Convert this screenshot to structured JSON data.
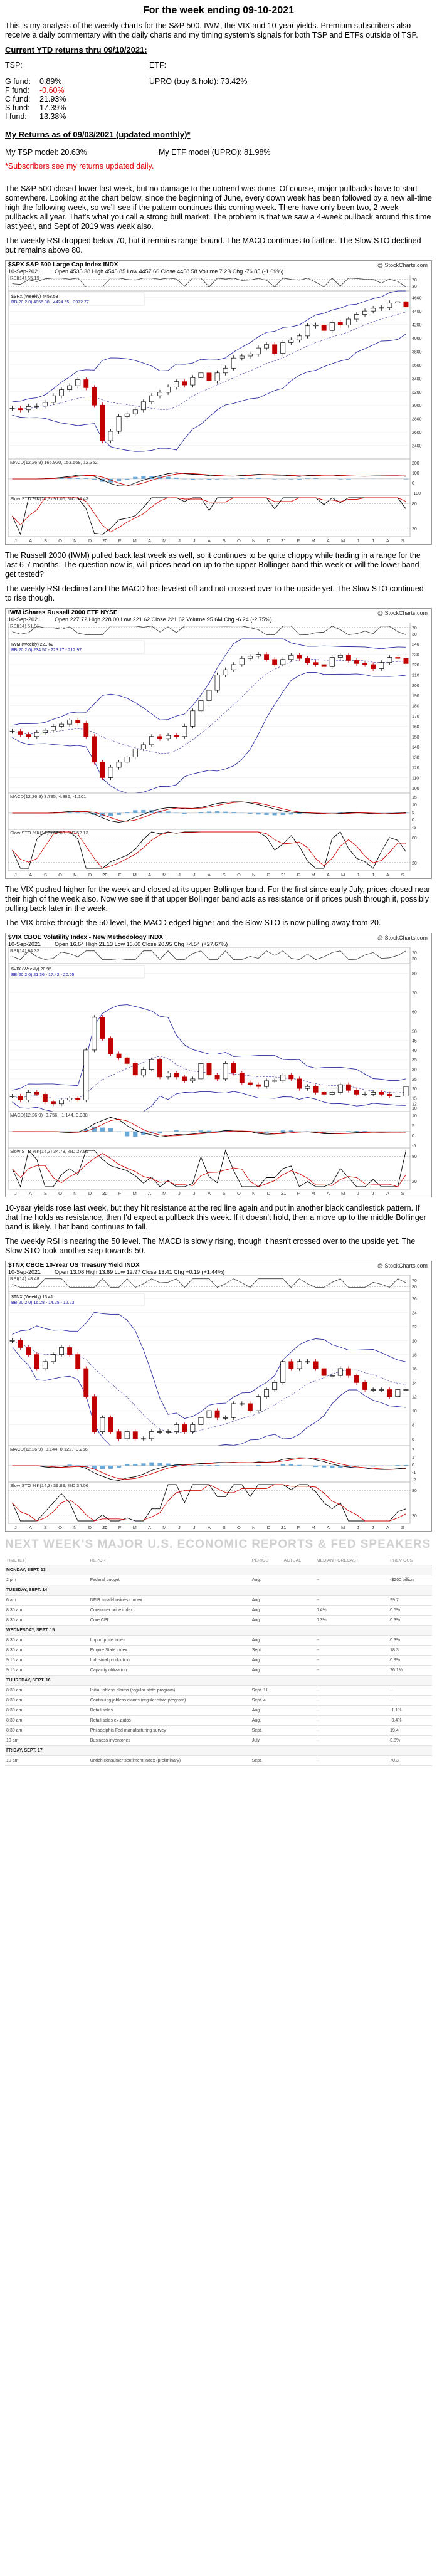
{
  "title": "For the week ending 09-10-2021",
  "intro": "This is my analysis of the weekly charts for the S&P 500, IWM, the VIX and 10-year yields. Premium subscribers also receive a daily commentary with the daily charts and my timing system's signals for both TSP and ETFs outside of TSP.",
  "ytd_heading": "Current YTD returns thru 09/10/2021:",
  "tsp_label": "TSP:",
  "etf_label": "ETF:",
  "tsp_returns": [
    {
      "fund": "G fund:",
      "value": "0.89%",
      "negative": false
    },
    {
      "fund": "F fund:",
      "value": "-0.60%",
      "negative": true
    },
    {
      "fund": "C fund:",
      "value": "21.93%",
      "negative": false
    },
    {
      "fund": "S fund:",
      "value": "17.39%",
      "negative": false
    },
    {
      "fund": "I fund:",
      "value": "13.38%",
      "negative": false
    }
  ],
  "etf_return": "UPRO (buy & hold): 73.42%",
  "my_returns_heading": "My Returns as of 09/03/2021 (updated monthly)*",
  "my_tsp_model": "My TSP model: 20.63%",
  "my_etf_model": "My ETF model (UPRO): 81.98%",
  "subscribers_note": "*Subscribers see my returns updated daily.",
  "para_spx": "The S&P 500 closed lower last week, but no damage to the uptrend was done. Of course, major pullbacks have to start somewhere. Looking at the chart below, since the beginning of June, every down week has been followed by a new all-time high the following week, so we'll see if the pattern continues this coming week. There have only been two, 2-week pullbacks all year. That's what you call a strong bull market. The problem is that we saw a 4-week pullback around this time last year, and Sept of 2019 was weak also.",
  "para_spx2": "The weekly RSI dropped below 70, but it remains range-bound. The MACD continues to flatline. The Slow STO declined but remains above 80.",
  "para_iwm": "The Russell 2000 (IWM) pulled back last week as well, so it continues to be quite choppy while trading in a range for the last 6-7 months. The question now is, will prices head on up to the upper Bollinger band this week or will the lower band get tested?",
  "para_iwm2": "The weekly RSI declined and the MACD has leveled off and not crossed over to the upside yet. The Slow STO continued to rise though.",
  "para_vix": "The VIX pushed higher for the week and closed at its upper Bollinger band. For the first since early July, prices closed near their high of the week also. Now we see if that upper Bollinger band acts as resistance or if prices push through it, possibly pulling back later in the week.",
  "para_vix2": "The VIX broke through the 50 level, the MACD edged higher and the Slow STO is now pulling away from 20.",
  "para_tnx": "10-year yields rose last week, but they hit resistance at the red line again and put in another black candlestick pattern. If that line holds as resistance, then I'd expect a pullback this week. If it doesn't hold, then a move up to the middle Bollinger band is likely. That band continues to fall.",
  "para_tnx2": "The weekly RSI is nearing the 50 level. The MACD is slowly rising, though it hasn't crossed over to the upside yet. The Slow STO took another step towards 50.",
  "charts": [
    {
      "symbol": "$SPX S&P 500 Large Cap Index INDX",
      "date": "10-Sep-2021",
      "ohlc": "Open 4535.38  High 4545.85  Low 4457.66  Close 4458.58  Volume 7.2B  Chg -76.85 (-1.69%)",
      "brand": "@ StockCharts.com",
      "rsi_label": "RSI(14) 65.19",
      "price_legend": "$SPX (Weekly) 4458.58",
      "bb_legend": "BB(20,2.0) 4856.38 - 4424.65 - 3972.77",
      "macd_label": "MACD(12,26,9) 165.920, 153.568, 12.352",
      "sto_label": "Slow STO %K(14,3) 91.06, %D 94.43",
      "yaxis": [
        "4600",
        "4400",
        "4200",
        "4000",
        "3800",
        "3600",
        "3400",
        "3200",
        "3000",
        "2800",
        "2600",
        "2400"
      ],
      "months": [
        "J",
        "A",
        "S",
        "O",
        "N",
        "D",
        "20",
        "F",
        "M",
        "A",
        "M",
        "J",
        "J",
        "A",
        "S",
        "O",
        "N",
        "D",
        "21",
        "F",
        "M",
        "A",
        "M",
        "J",
        "J",
        "A",
        "S"
      ],
      "rsi_levels": [
        "70",
        "30"
      ],
      "macd_levels": [
        "200",
        "100",
        "0",
        "-100"
      ],
      "sto_levels": [
        "80",
        "20"
      ]
    },
    {
      "symbol": "IWM iShares Russell 2000 ETF NYSE",
      "date": "10-Sep-2021",
      "ohlc": "Open 227.72  High 228.00  Low 221.62  Close 221.62  Volume 95.6M  Chg -6.24 (-2.75%)",
      "brand": "@ StockCharts.com",
      "rsi_label": "RSI(14) 51.91",
      "price_legend": "IWM (Weekly) 221.62",
      "bb_legend": "BB(20,2.0) 234.57 - 223.77 - 212.97",
      "macd_label": "MACD(12,26,9) 3.785, 4.886, -1.101",
      "sto_label": "Slow STO %K(14,3) 66.83, %D 52.13",
      "yaxis": [
        "240",
        "230",
        "220",
        "210",
        "200",
        "190",
        "180",
        "170",
        "160",
        "150",
        "140",
        "130",
        "120",
        "110",
        "100"
      ],
      "months": [
        "J",
        "A",
        "S",
        "O",
        "N",
        "D",
        "20",
        "F",
        "M",
        "A",
        "M",
        "J",
        "J",
        "A",
        "S",
        "O",
        "N",
        "D",
        "21",
        "F",
        "M",
        "A",
        "M",
        "J",
        "J",
        "A",
        "S"
      ],
      "rsi_levels": [
        "70",
        "30"
      ],
      "macd_levels": [
        "15",
        "10",
        "5",
        "0",
        "-5"
      ],
      "sto_levels": [
        "80",
        "20"
      ]
    },
    {
      "symbol": "$VIX CBOE Volatility Index - New Methodology INDX",
      "date": "10-Sep-2021",
      "ohlc": "Open 16.64  High 21.13  Low 16.60  Close 20.95  Chg +4.54 (+27.67%)",
      "brand": "@ StockCharts.com",
      "rsi_label": "RSI(14) 54.32",
      "price_legend": "$VIX (Weekly) 20.95",
      "bb_legend": "BB(20,2.0) 21.36 - 17.42 - 20.05",
      "macd_label": "MACD(12,26,9) -0.756, -1.144, 0.388",
      "sto_label": "Slow STO %K(14,3) 34.73, %D 27.91",
      "yaxis": [
        "80",
        "70",
        "60",
        "50",
        "45",
        "40",
        "35",
        "30",
        "25",
        "20",
        "15",
        "12",
        "10"
      ],
      "months": [
        "J",
        "A",
        "S",
        "O",
        "N",
        "D",
        "20",
        "F",
        "M",
        "A",
        "M",
        "J",
        "J",
        "A",
        "S",
        "O",
        "N",
        "D",
        "21",
        "F",
        "M",
        "A",
        "M",
        "J",
        "J",
        "A",
        "S"
      ],
      "rsi_levels": [
        "70",
        "30"
      ],
      "macd_levels": [
        "10",
        "5",
        "0",
        "-5"
      ],
      "sto_levels": [
        "80",
        "20"
      ]
    },
    {
      "symbol": "$TNX CBOE 10-Year US Treasury Yield INDX",
      "date": "10-Sep-2021",
      "ohlc": "Open 13.08  High 13.69  Low 12.97  Close 13.41  Chg +0.19 (+1.44%)",
      "brand": "@ StockCharts.com",
      "rsi_label": "RSI(14) 48.48",
      "price_legend": "$TNX (Weekly) 13.41",
      "bb_legend": "BB(20,2.0) 16.28 - 14.25 - 12.23",
      "macd_label": "MACD(12,26,9) -0.144, 0.122, -0.266",
      "sto_label": "Slow STO %K(14,3) 39.89, %D 34.06",
      "yaxis": [
        "26",
        "24",
        "22",
        "20",
        "18",
        "16",
        "14",
        "12",
        "10",
        "8",
        "6"
      ],
      "months": [
        "J",
        "A",
        "S",
        "O",
        "N",
        "D",
        "20",
        "F",
        "M",
        "A",
        "M",
        "J",
        "J",
        "A",
        "S",
        "O",
        "N",
        "D",
        "21",
        "F",
        "M",
        "A",
        "M",
        "J",
        "J",
        "A",
        "S"
      ],
      "rsi_levels": [
        "70",
        "30"
      ],
      "macd_levels": [
        "2",
        "1",
        "0",
        "-1",
        "-2"
      ],
      "sto_levels": [
        "80",
        "20"
      ]
    }
  ],
  "chart_data": [
    {
      "type": "line",
      "title": "$SPX (Weekly)",
      "series": [
        {
          "name": "$SPX (Weekly)",
          "values": [
            2950,
            2930,
            2980,
            2990,
            3040,
            3140,
            3230,
            3290,
            3380,
            3260,
            3000,
            2470,
            2610,
            2830,
            2870,
            2930,
            3050,
            3140,
            3190,
            3270,
            3350,
            3300,
            3410,
            3480,
            3360,
            3480,
            3550,
            3700,
            3730,
            3760,
            3850,
            3900,
            3770,
            3930,
            3970,
            4030,
            4180,
            4190,
            4110,
            4230,
            4190,
            4280,
            4350,
            4400,
            4440,
            4450,
            4520,
            4540,
            4460
          ]
        }
      ],
      "ylim": [
        2200,
        4700
      ]
    },
    {
      "type": "line",
      "title": "IWM (Weekly)",
      "series": [
        {
          "name": "IWM (Weekly)",
          "values": [
            155,
            152,
            150,
            154,
            156,
            160,
            162,
            166,
            163,
            150,
            125,
            110,
            120,
            125,
            130,
            138,
            142,
            150,
            148,
            151,
            150,
            160,
            175,
            185,
            195,
            210,
            215,
            220,
            226,
            228,
            230,
            225,
            220,
            225,
            229,
            226,
            222,
            220,
            218,
            227,
            229,
            224,
            221,
            220,
            216,
            222,
            227,
            226,
            221
          ]
        }
      ],
      "ylim": [
        95,
        245
      ]
    },
    {
      "type": "line",
      "title": "$VIX (Weekly)",
      "series": [
        {
          "name": "$VIX (Weekly)",
          "values": [
            16,
            14,
            18,
            17,
            13,
            12,
            14,
            15,
            14,
            40,
            57,
            46,
            38,
            36,
            33,
            27,
            30,
            35,
            26,
            28,
            26,
            24,
            25,
            33,
            27,
            25,
            33,
            28,
            23,
            22,
            21,
            24,
            24,
            27,
            25,
            20,
            21,
            18,
            17,
            18,
            22,
            19,
            17,
            17,
            18,
            17,
            16,
            16,
            21
          ]
        }
      ],
      "ylim": [
        8,
        85
      ]
    },
    {
      "type": "line",
      "title": "$TNX (Weekly)",
      "series": [
        {
          "name": "$TNX (Weekly)",
          "values": [
            20,
            19,
            18,
            16,
            17,
            18,
            19,
            18,
            16,
            12,
            7,
            9,
            7,
            6,
            7,
            6,
            6,
            7,
            7,
            7,
            8,
            7,
            8,
            9,
            10,
            9,
            9,
            11,
            11,
            10,
            12,
            13,
            14,
            17,
            16,
            17,
            17,
            16,
            15,
            15,
            16,
            15,
            14,
            13,
            13,
            13,
            12,
            13,
            13
          ]
        }
      ],
      "ylim": [
        5,
        27
      ]
    }
  ],
  "econ": {
    "heading": "NEXT WEEK'S MAJOR U.S. ECONOMIC REPORTS & FED SPEAKERS",
    "columns": [
      "TIME (ET)",
      "REPORT",
      "PERIOD",
      "ACTUAL",
      "MEDIAN FORECAST",
      "PREVIOUS"
    ],
    "rows": [
      {
        "day": true,
        "time": "MONDAY, SEPT. 13",
        "report": "",
        "period": "",
        "actual": "",
        "forecast": "",
        "previous": ""
      },
      {
        "day": false,
        "time": "2 pm",
        "report": "Federal budget",
        "period": "Aug.",
        "actual": "",
        "forecast": "--",
        "previous": "-$200 billion"
      },
      {
        "day": true,
        "time": "TUESDAY, SEPT. 14",
        "report": "",
        "period": "",
        "actual": "",
        "forecast": "",
        "previous": ""
      },
      {
        "day": false,
        "time": "6 am",
        "report": "NFIB small-business index",
        "period": "Aug.",
        "actual": "",
        "forecast": "--",
        "previous": "99.7"
      },
      {
        "day": false,
        "time": "8:30 am",
        "report": "Consumer price index",
        "period": "Aug.",
        "actual": "",
        "forecast": "0.4%",
        "previous": "0.5%"
      },
      {
        "day": false,
        "time": "8:30 am",
        "report": "Core CPI",
        "period": "Aug.",
        "actual": "",
        "forecast": "0.3%",
        "previous": "0.3%"
      },
      {
        "day": true,
        "time": "WEDNESDAY, SEPT. 15",
        "report": "",
        "period": "",
        "actual": "",
        "forecast": "",
        "previous": ""
      },
      {
        "day": false,
        "time": "8:30 am",
        "report": "Import price index",
        "period": "Aug.",
        "actual": "",
        "forecast": "--",
        "previous": "0.3%"
      },
      {
        "day": false,
        "time": "8:30 am",
        "report": "Empire State index",
        "period": "Sept.",
        "actual": "",
        "forecast": "--",
        "previous": "18.3"
      },
      {
        "day": false,
        "time": "9:15 am",
        "report": "Industrial production",
        "period": "Aug.",
        "actual": "",
        "forecast": "--",
        "previous": "0.9%"
      },
      {
        "day": false,
        "time": "9:15 am",
        "report": "Capacity utilization",
        "period": "Aug.",
        "actual": "",
        "forecast": "--",
        "previous": "76.1%"
      },
      {
        "day": true,
        "time": "THURSDAY, SEPT. 16",
        "report": "",
        "period": "",
        "actual": "",
        "forecast": "",
        "previous": ""
      },
      {
        "day": false,
        "time": "8:30 am",
        "report": "Initial jobless claims (regular state program)",
        "period": "Sept. 11",
        "actual": "",
        "forecast": "--",
        "previous": "--"
      },
      {
        "day": false,
        "time": "8:30 am",
        "report": "Continuing jobless claims (regular state program)",
        "period": "Sept. 4",
        "actual": "",
        "forecast": "--",
        "previous": "--"
      },
      {
        "day": false,
        "time": "8:30 am",
        "report": "Retail sales",
        "period": "Aug.",
        "actual": "",
        "forecast": "--",
        "previous": "-1.1%"
      },
      {
        "day": false,
        "time": "8:30 am",
        "report": "Retail sales ex-autos",
        "period": "Aug.",
        "actual": "",
        "forecast": "--",
        "previous": "-0.4%"
      },
      {
        "day": false,
        "time": "8:30 am",
        "report": "Philadelphia Fed manufacturing survey",
        "period": "Sept.",
        "actual": "",
        "forecast": "--",
        "previous": "19.4"
      },
      {
        "day": false,
        "time": "10 am",
        "report": "Business inventories",
        "period": "July",
        "actual": "",
        "forecast": "--",
        "previous": "0.8%"
      },
      {
        "day": true,
        "time": "FRIDAY, SEPT. 17",
        "report": "",
        "period": "",
        "actual": "",
        "forecast": "",
        "previous": ""
      },
      {
        "day": false,
        "time": "10 am",
        "report": "UMich consumer sentiment index (preliminary)",
        "period": "Sept.",
        "actual": "",
        "forecast": "--",
        "previous": "70.3"
      }
    ]
  }
}
